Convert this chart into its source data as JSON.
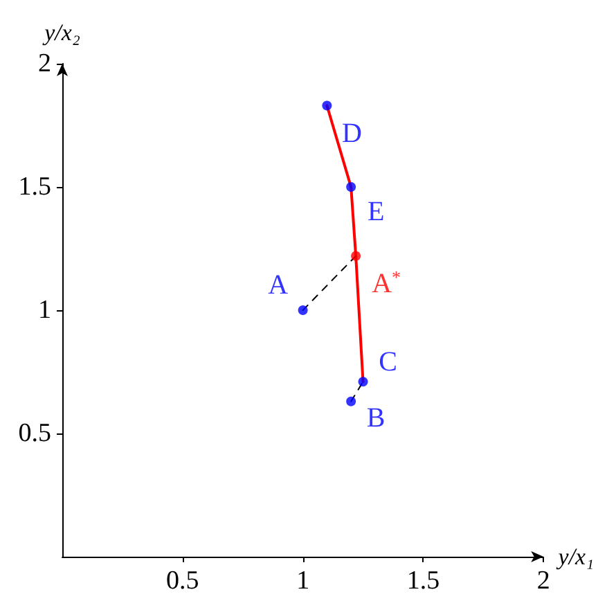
{
  "chart_data": {
    "type": "scatter",
    "xlabel": "y/x₁",
    "ylabel": "y/x₂",
    "xlim": [
      0,
      2
    ],
    "ylim": [
      0,
      2
    ],
    "xticks": [
      0.5,
      1,
      1.5,
      2
    ],
    "yticks": [
      0.5,
      1,
      1.5,
      2
    ],
    "grid": false,
    "series": [
      {
        "color": "#0000ff",
        "x": [
          1,
          1.2,
          1.25,
          1.1,
          1.2
        ],
        "values": [
          1,
          0.63,
          0.71,
          1.83,
          1.5
        ]
      },
      {
        "color": "#ff0000",
        "x": [
          1.22
        ],
        "values": [
          1.22
        ]
      },
      {
        "type": "line",
        "color": "#ff0000",
        "marker": "none",
        "line_style": "solid",
        "x": [
          1.1,
          1.2,
          1.22,
          1.25
        ],
        "values": [
          1.83,
          1.5,
          1.22,
          0.71
        ]
      },
      {
        "type": "line",
        "color": "#000000",
        "marker": "none",
        "line_style": "dashed",
        "x": [
          1,
          1.22
        ],
        "values": [
          1,
          1.22
        ]
      },
      {
        "type": "line",
        "color": "#000000",
        "marker": "none",
        "line_style": "dashed",
        "x": [
          1.2,
          1.25
        ],
        "values": [
          0.63,
          0.71
        ]
      }
    ],
    "annotations": [
      {
        "text": "A",
        "x": 1,
        "y": 1
      },
      {
        "text": "B",
        "x": 1.2,
        "y": 0.63
      },
      {
        "text": "C",
        "x": 1.25,
        "y": 0.71
      },
      {
        "text": "D",
        "x": 1.1,
        "y": 1.83
      },
      {
        "text": "E",
        "x": 1.2,
        "y": 1.5
      },
      {
        "text": "A*",
        "x": 1.22,
        "y": 1.22
      }
    ]
  }
}
